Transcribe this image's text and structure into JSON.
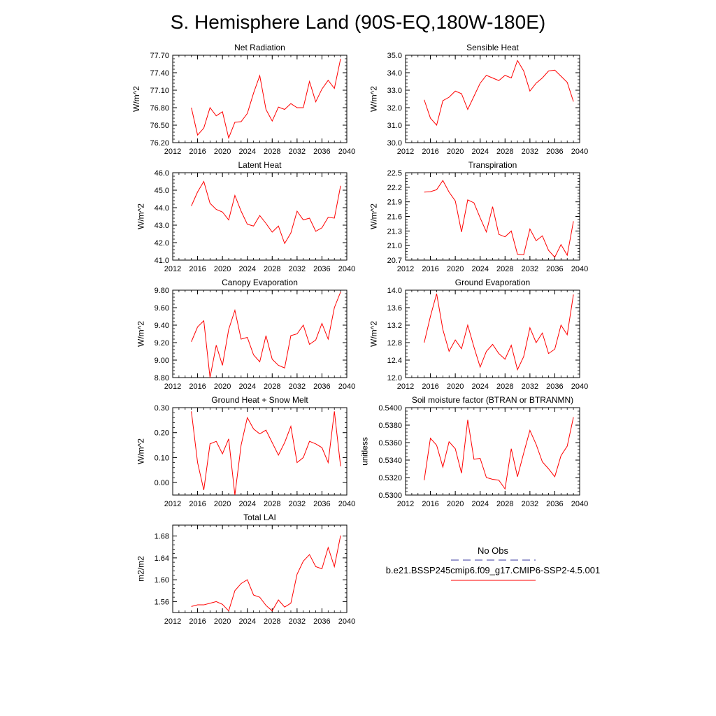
{
  "figure": {
    "title": "S. Hemisphere Land (90S-EQ,180W-180E)"
  },
  "legend": {
    "items": [
      {
        "label": "No Obs",
        "color": "#3a3aa0",
        "dash": true
      },
      {
        "label": "b.e21.BSSP245cmip6.f09_g17.CMIP6-SSP2-4.5.001",
        "color": "#ff0000",
        "dash": false
      }
    ]
  },
  "chart_data": [
    {
      "type": "line",
      "title": "Net Radiation",
      "ylabel": "W/m^2",
      "xlim": [
        2012,
        2040
      ],
      "ylim": [
        76.2,
        77.7
      ],
      "xticks": [
        "2012",
        "2016",
        "2020",
        "2024",
        "2028",
        "2032",
        "2036",
        "2040"
      ],
      "yticks": [
        "76.20",
        "76.50",
        "76.80",
        "77.10",
        "77.40",
        "77.70"
      ],
      "x": [
        2015,
        2016,
        2017,
        2018,
        2019,
        2020,
        2021,
        2022,
        2023,
        2024,
        2025,
        2026,
        2027,
        2028,
        2029,
        2030,
        2031,
        2032,
        2033,
        2034,
        2035,
        2036,
        2037,
        2038,
        2039
      ],
      "series": [
        {
          "color": "#ff0000",
          "values": [
            76.8,
            76.33,
            76.45,
            76.8,
            76.66,
            76.73,
            76.28,
            76.55,
            76.56,
            76.7,
            77.05,
            77.35,
            76.77,
            76.57,
            76.81,
            76.77,
            76.87,
            76.8,
            76.8,
            77.25,
            76.9,
            77.12,
            77.27,
            77.13,
            77.64
          ]
        }
      ]
    },
    {
      "type": "line",
      "title": "Sensible Heat",
      "ylabel": "W/m^2",
      "xlim": [
        2012,
        2040
      ],
      "ylim": [
        30.0,
        35.0
      ],
      "xticks": [
        "2012",
        "2016",
        "2020",
        "2024",
        "2028",
        "2032",
        "2036",
        "2040"
      ],
      "yticks": [
        "30.0",
        "31.0",
        "32.0",
        "33.0",
        "34.0",
        "35.0"
      ],
      "x": [
        2015,
        2016,
        2017,
        2018,
        2019,
        2020,
        2021,
        2022,
        2023,
        2024,
        2025,
        2026,
        2027,
        2028,
        2029,
        2030,
        2031,
        2032,
        2033,
        2034,
        2035,
        2036,
        2037,
        2038,
        2039
      ],
      "series": [
        {
          "color": "#ff0000",
          "values": [
            32.45,
            31.4,
            31.0,
            32.4,
            32.6,
            32.95,
            32.8,
            31.9,
            32.65,
            33.4,
            33.85,
            33.7,
            33.55,
            33.85,
            33.7,
            34.7,
            34.1,
            32.95,
            33.4,
            33.7,
            34.1,
            34.15,
            33.8,
            33.45,
            32.35
          ]
        }
      ]
    },
    {
      "type": "line",
      "title": "Latent Heat",
      "ylabel": "W/m^2",
      "xlim": [
        2012,
        2040
      ],
      "ylim": [
        41.0,
        46.0
      ],
      "xticks": [
        "2012",
        "2016",
        "2020",
        "2024",
        "2028",
        "2032",
        "2036",
        "2040"
      ],
      "yticks": [
        "41.0",
        "42.0",
        "43.0",
        "44.0",
        "45.0",
        "46.0"
      ],
      "x": [
        2015,
        2016,
        2017,
        2018,
        2019,
        2020,
        2021,
        2022,
        2023,
        2024,
        2025,
        2026,
        2027,
        2028,
        2029,
        2030,
        2031,
        2032,
        2033,
        2034,
        2035,
        2036,
        2037,
        2038,
        2039
      ],
      "series": [
        {
          "color": "#ff0000",
          "values": [
            44.1,
            44.9,
            45.5,
            44.25,
            43.9,
            43.75,
            43.3,
            44.7,
            43.8,
            43.05,
            42.95,
            43.55,
            43.1,
            42.6,
            42.95,
            41.95,
            42.55,
            43.8,
            43.3,
            43.4,
            42.65,
            42.85,
            43.45,
            43.4,
            45.25
          ]
        }
      ]
    },
    {
      "type": "line",
      "title": "Transpiration",
      "ylabel": "W/m^2",
      "xlim": [
        2012,
        2040
      ],
      "ylim": [
        20.7,
        22.5
      ],
      "xticks": [
        "2012",
        "2016",
        "2020",
        "2024",
        "2028",
        "2032",
        "2036",
        "2040"
      ],
      "yticks": [
        "20.7",
        "21.0",
        "21.3",
        "21.6",
        "21.9",
        "22.2",
        "22.5"
      ],
      "x": [
        2015,
        2016,
        2017,
        2018,
        2019,
        2020,
        2021,
        2022,
        2023,
        2024,
        2025,
        2026,
        2027,
        2028,
        2029,
        2030,
        2031,
        2032,
        2033,
        2034,
        2035,
        2036,
        2037,
        2038,
        2039
      ],
      "series": [
        {
          "color": "#ff0000",
          "values": [
            22.1,
            22.11,
            22.15,
            22.34,
            22.1,
            21.92,
            21.28,
            21.94,
            21.88,
            21.57,
            21.28,
            21.8,
            21.23,
            21.18,
            21.3,
            20.82,
            20.81,
            21.34,
            21.1,
            21.2,
            20.9,
            20.76,
            21.02,
            20.8,
            21.5
          ]
        }
      ]
    },
    {
      "type": "line",
      "title": "Canopy Evaporation",
      "ylabel": "W/m^2",
      "xlim": [
        2012,
        2040
      ],
      "ylim": [
        8.8,
        9.8
      ],
      "xticks": [
        "2012",
        "2016",
        "2020",
        "2024",
        "2028",
        "2032",
        "2036",
        "2040"
      ],
      "yticks": [
        "8.80",
        "9.00",
        "9.20",
        "9.40",
        "9.60",
        "9.80"
      ],
      "x": [
        2015,
        2016,
        2017,
        2018,
        2019,
        2020,
        2021,
        2022,
        2023,
        2024,
        2025,
        2026,
        2027,
        2028,
        2029,
        2030,
        2031,
        2032,
        2033,
        2034,
        2035,
        2036,
        2037,
        2038,
        2039
      ],
      "series": [
        {
          "color": "#ff0000",
          "values": [
            9.21,
            9.38,
            9.45,
            8.8,
            9.17,
            8.94,
            9.35,
            9.57,
            9.24,
            9.26,
            9.06,
            8.98,
            9.28,
            9.01,
            8.94,
            8.91,
            9.28,
            9.3,
            9.4,
            9.18,
            9.23,
            9.42,
            9.24,
            9.6,
            9.78
          ]
        }
      ]
    },
    {
      "type": "line",
      "title": "Ground Evaporation",
      "ylabel": "W/m^2",
      "xlim": [
        2012,
        2040
      ],
      "ylim": [
        12.0,
        14.0
      ],
      "xticks": [
        "2012",
        "2016",
        "2020",
        "2024",
        "2028",
        "2032",
        "2036",
        "2040"
      ],
      "yticks": [
        "12.0",
        "12.4",
        "12.8",
        "13.2",
        "13.6",
        "14.0"
      ],
      "x": [
        2015,
        2016,
        2017,
        2018,
        2019,
        2020,
        2021,
        2022,
        2023,
        2024,
        2025,
        2026,
        2027,
        2028,
        2029,
        2030,
        2031,
        2032,
        2033,
        2034,
        2035,
        2036,
        2037,
        2038,
        2039
      ],
      "series": [
        {
          "color": "#ff0000",
          "values": [
            12.8,
            13.4,
            13.92,
            13.1,
            12.6,
            12.86,
            12.66,
            13.2,
            12.7,
            12.24,
            12.6,
            12.76,
            12.55,
            12.42,
            12.74,
            12.18,
            12.48,
            13.14,
            12.8,
            13.02,
            12.55,
            12.65,
            13.2,
            12.98,
            13.9
          ]
        }
      ]
    },
    {
      "type": "line",
      "title": "Ground Heat + Snow Melt",
      "ylabel": "W/m^2",
      "xlim": [
        2012,
        2040
      ],
      "ylim": [
        -0.05,
        0.3
      ],
      "xticks": [
        "2012",
        "2016",
        "2020",
        "2024",
        "2028",
        "2032",
        "2036",
        "2040"
      ],
      "yticks": [
        "0.00",
        "0.10",
        "0.20",
        "0.30"
      ],
      "ytick_values": [
        0.0,
        0.1,
        0.2,
        0.3
      ],
      "x": [
        2015,
        2016,
        2017,
        2018,
        2019,
        2020,
        2021,
        2022,
        2023,
        2024,
        2025,
        2026,
        2027,
        2028,
        2029,
        2030,
        2031,
        2032,
        2033,
        2034,
        2035,
        2036,
        2037,
        2038,
        2039
      ],
      "series": [
        {
          "color": "#ff0000",
          "values": [
            0.285,
            0.08,
            -0.03,
            0.155,
            0.165,
            0.115,
            0.175,
            -0.05,
            0.15,
            0.26,
            0.215,
            0.195,
            0.21,
            0.16,
            0.11,
            0.16,
            0.225,
            0.08,
            0.1,
            0.165,
            0.155,
            0.14,
            0.08,
            0.285,
            0.065
          ]
        }
      ]
    },
    {
      "type": "line",
      "title": "Soil moisture factor (BTRAN or BTRANMN)",
      "ylabel": "unitless",
      "xlim": [
        2012,
        2040
      ],
      "ylim": [
        0.53,
        0.54
      ],
      "xticks": [
        "2012",
        "2016",
        "2020",
        "2024",
        "2028",
        "2032",
        "2036",
        "2040"
      ],
      "yticks": [
        "0.5300",
        "0.5320",
        "0.5340",
        "0.5360",
        "0.5380",
        "0.5400"
      ],
      "x": [
        2015,
        2016,
        2017,
        2018,
        2019,
        2020,
        2021,
        2022,
        2023,
        2024,
        2025,
        2026,
        2027,
        2028,
        2029,
        2030,
        2031,
        2032,
        2033,
        2034,
        2035,
        2036,
        2037,
        2038,
        2039
      ],
      "series": [
        {
          "color": "#ff0000",
          "values": [
            0.5317,
            0.5365,
            0.5357,
            0.5332,
            0.5361,
            0.5353,
            0.5325,
            0.5386,
            0.5341,
            0.5342,
            0.532,
            0.5318,
            0.5317,
            0.5307,
            0.5353,
            0.5321,
            0.5348,
            0.5374,
            0.5358,
            0.5338,
            0.533,
            0.5321,
            0.5345,
            0.5356,
            0.5389
          ]
        }
      ]
    },
    {
      "type": "line",
      "title": "Total LAI",
      "ylabel": "m2/m2",
      "xlim": [
        2012,
        2040
      ],
      "ylim": [
        1.54,
        1.7
      ],
      "xticks": [
        "2012",
        "2016",
        "2020",
        "2024",
        "2028",
        "2032",
        "2036",
        "2040"
      ],
      "yticks": [
        "1.56",
        "1.60",
        "1.64",
        "1.68"
      ],
      "ytick_values": [
        1.56,
        1.6,
        1.64,
        1.68
      ],
      "x": [
        2015,
        2016,
        2017,
        2018,
        2019,
        2020,
        2021,
        2022,
        2023,
        2024,
        2025,
        2026,
        2027,
        2028,
        2029,
        2030,
        2031,
        2032,
        2033,
        2034,
        2035,
        2036,
        2037,
        2038,
        2039
      ],
      "series": [
        {
          "color": "#ff0000",
          "values": [
            1.551,
            1.554,
            1.554,
            1.557,
            1.56,
            1.555,
            1.543,
            1.58,
            1.593,
            1.6,
            1.572,
            1.568,
            1.553,
            1.543,
            1.563,
            1.55,
            1.557,
            1.61,
            1.634,
            1.646,
            1.624,
            1.62,
            1.659,
            1.624,
            1.681
          ]
        }
      ]
    }
  ]
}
